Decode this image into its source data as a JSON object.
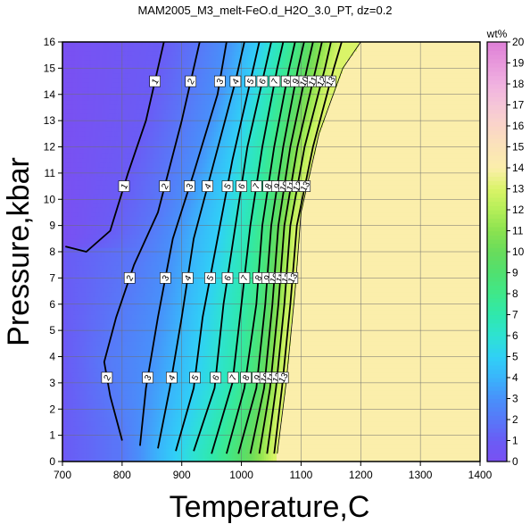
{
  "chart_data": {
    "type": "heatmap",
    "title": "MAM2005_M3_melt-FeO.d_H2O_3.0_PT, dz=0.2",
    "xlabel": "Temperature,C",
    "ylabel": "Pressure,kbar",
    "xlim": [
      700,
      1400
    ],
    "ylim": [
      0,
      16
    ],
    "x_ticks": [
      "700",
      "800",
      "900",
      "1000",
      "1100",
      "1200",
      "1300",
      "1400"
    ],
    "y_ticks": [
      "0",
      "1",
      "2",
      "3",
      "4",
      "5",
      "6",
      "7",
      "8",
      "9",
      "10",
      "11",
      "12",
      "13",
      "14",
      "15",
      "16"
    ],
    "grid": true,
    "colorbar": {
      "label": "wt%",
      "range": [
        0,
        20
      ],
      "ticks": [
        "0",
        "1",
        "2",
        "3",
        "4",
        "5",
        "6",
        "7",
        "8",
        "9",
        "10",
        "11",
        "12",
        "13",
        "14",
        "15",
        "16",
        "17",
        "18",
        "19",
        "20"
      ]
    },
    "contour_levels": [
      1,
      2,
      3,
      4,
      5,
      6,
      7,
      8,
      9,
      10,
      11,
      12,
      13
    ],
    "contours": [
      {
        "level": 1,
        "points": [
          [
            705,
            8.2
          ],
          [
            740,
            8.0
          ],
          [
            780,
            8.8
          ],
          [
            810,
            11.0
          ],
          [
            840,
            13.0
          ],
          [
            870,
            16.0
          ]
        ]
      },
      {
        "level": 2,
        "points": [
          [
            800,
            0.8
          ],
          [
            780,
            2.5
          ],
          [
            770,
            3.8
          ],
          [
            790,
            5.5
          ],
          [
            820,
            7.5
          ],
          [
            860,
            9.5
          ],
          [
            900,
            13.0
          ],
          [
            930,
            16.0
          ]
        ]
      },
      {
        "level": 3,
        "points": [
          [
            830,
            0.6
          ],
          [
            840,
            2.8
          ],
          [
            860,
            5.5
          ],
          [
            885,
            8.5
          ],
          [
            920,
            11.0
          ],
          [
            960,
            14.0
          ],
          [
            975,
            16.0
          ]
        ]
      },
      {
        "level": 4,
        "points": [
          [
            860,
            0.5
          ],
          [
            880,
            2.8
          ],
          [
            900,
            5.5
          ],
          [
            920,
            8.5
          ],
          [
            955,
            11.5
          ],
          [
            990,
            14.5
          ],
          [
            1005,
            16.0
          ]
        ]
      },
      {
        "level": 5,
        "points": [
          [
            890,
            0.4
          ],
          [
            920,
            2.8
          ],
          [
            935,
            5.5
          ],
          [
            960,
            8.5
          ],
          [
            985,
            11.5
          ],
          [
            1015,
            14.5
          ],
          [
            1030,
            16.0
          ]
        ]
      },
      {
        "level": 6,
        "points": [
          [
            920,
            0.4
          ],
          [
            955,
            2.8
          ],
          [
            970,
            6.0
          ],
          [
            990,
            9.0
          ],
          [
            1010,
            12.0
          ],
          [
            1040,
            15.0
          ],
          [
            1050,
            16.0
          ]
        ]
      },
      {
        "level": 7,
        "points": [
          [
            950,
            0.3
          ],
          [
            985,
            3.0
          ],
          [
            1000,
            6.0
          ],
          [
            1015,
            9.0
          ],
          [
            1035,
            12.0
          ],
          [
            1060,
            15.0
          ],
          [
            1070,
            16.0
          ]
        ]
      },
      {
        "level": 8,
        "points": [
          [
            975,
            0.3
          ],
          [
            1005,
            2.8
          ],
          [
            1025,
            6.0
          ],
          [
            1035,
            9.0
          ],
          [
            1055,
            12.0
          ],
          [
            1080,
            15.0
          ],
          [
            1090,
            16.0
          ]
        ]
      },
      {
        "level": 9,
        "points": [
          [
            995,
            0.3
          ],
          [
            1025,
            2.8
          ],
          [
            1040,
            6.0
          ],
          [
            1050,
            9.0
          ],
          [
            1070,
            12.0
          ],
          [
            1095,
            15.0
          ],
          [
            1105,
            16.0
          ]
        ]
      },
      {
        "level": 10,
        "points": [
          [
            1015,
            0.3
          ],
          [
            1038,
            2.8
          ],
          [
            1052,
            6.0
          ],
          [
            1062,
            9.0
          ],
          [
            1082,
            12.0
          ],
          [
            1110,
            15.0
          ],
          [
            1120,
            16.0
          ]
        ]
      },
      {
        "level": 11,
        "points": [
          [
            1030,
            0.3
          ],
          [
            1048,
            2.8
          ],
          [
            1062,
            6.0
          ],
          [
            1072,
            9.0
          ],
          [
            1094,
            12.0
          ],
          [
            1125,
            15.0
          ],
          [
            1135,
            16.0
          ]
        ]
      },
      {
        "level": 12,
        "points": [
          [
            1043,
            0.3
          ],
          [
            1058,
            2.8
          ],
          [
            1072,
            6.0
          ],
          [
            1082,
            9.0
          ],
          [
            1106,
            12.0
          ],
          [
            1140,
            15.0
          ],
          [
            1150,
            16.0
          ]
        ]
      },
      {
        "level": 13,
        "points": [
          [
            1055,
            0.3
          ],
          [
            1068,
            2.8
          ],
          [
            1082,
            6.0
          ],
          [
            1093,
            9.0
          ],
          [
            1120,
            12.0
          ],
          [
            1155,
            15.0
          ],
          [
            1168,
            16.0
          ]
        ]
      }
    ],
    "saturation_boundary": [
      [
        1060,
        0.3
      ],
      [
        1075,
        3.0
      ],
      [
        1090,
        6.5
      ],
      [
        1100,
        9.5
      ],
      [
        1130,
        12.5
      ],
      [
        1170,
        15.0
      ],
      [
        1200,
        16.0
      ]
    ],
    "saturated_color": "#fbeeab",
    "saturated_value_wt": 13.2,
    "colormap_stops": [
      {
        "v": 0,
        "c": "#7a50f2"
      },
      {
        "v": 1,
        "c": "#6a5cf5"
      },
      {
        "v": 2,
        "c": "#5878f8"
      },
      {
        "v": 3,
        "c": "#4890fa"
      },
      {
        "v": 4,
        "c": "#3ab4fb"
      },
      {
        "v": 5,
        "c": "#30d0f6"
      },
      {
        "v": 6,
        "c": "#2ee2d2"
      },
      {
        "v": 7,
        "c": "#2fe8ad"
      },
      {
        "v": 8,
        "c": "#3fe88a"
      },
      {
        "v": 9,
        "c": "#50e070"
      },
      {
        "v": 10,
        "c": "#68dc5c"
      },
      {
        "v": 11,
        "c": "#8ae250"
      },
      {
        "v": 12,
        "c": "#b4ee58"
      },
      {
        "v": 13,
        "c": "#daf468"
      },
      {
        "v": 14,
        "c": "#fbeeab"
      },
      {
        "v": 15,
        "c": "#fbe3b8"
      },
      {
        "v": 16,
        "c": "#fad5c8"
      },
      {
        "v": 17,
        "c": "#f6c6d8"
      },
      {
        "v": 18,
        "c": "#f0b2e0"
      },
      {
        "v": 19,
        "c": "#e898dc"
      },
      {
        "v": 20,
        "c": "#de80d6"
      }
    ]
  }
}
